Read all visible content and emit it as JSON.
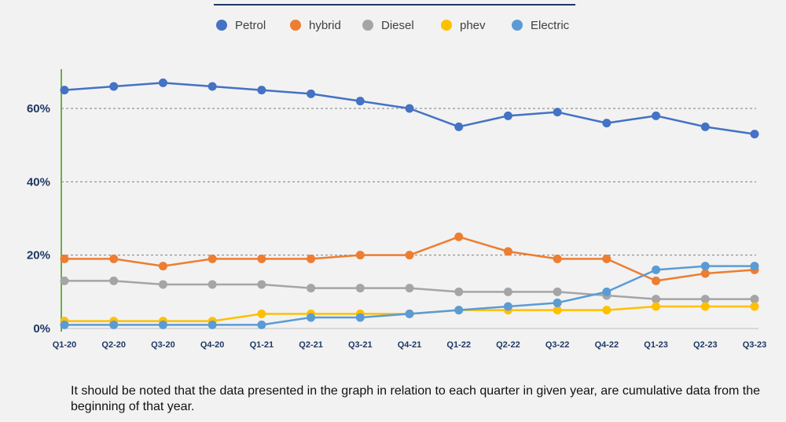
{
  "chart_data": {
    "type": "line",
    "categories": [
      "Q1-20",
      "Q2-20",
      "Q3-20",
      "Q4-20",
      "Q1-21",
      "Q2-21",
      "Q3-21",
      "Q4-21",
      "Q1-22",
      "Q2-22",
      "Q3-22",
      "Q4-22",
      "Q1-23",
      "Q2-23",
      "Q3-23"
    ],
    "ylim": [
      0,
      70
    ],
    "yticks": [
      0,
      20,
      40,
      60
    ],
    "ytick_labels": [
      "0%",
      "20%",
      "40%",
      "60%"
    ],
    "grid": "horizontal dashed at 20%, 40%, 60%",
    "legend_position": "top-center",
    "series": [
      {
        "name": "Petrol",
        "color": "#4472c4",
        "values": [
          65,
          66,
          67,
          66,
          65,
          64,
          62,
          60,
          55,
          58,
          59,
          56,
          58,
          55,
          53
        ]
      },
      {
        "name": "hybrid",
        "color": "#ed7d31",
        "values": [
          19,
          19,
          17,
          19,
          19,
          19,
          20,
          20,
          25,
          21,
          19,
          19,
          13,
          15,
          16
        ]
      },
      {
        "name": "Diesel",
        "color": "#a5a5a5",
        "values": [
          13,
          13,
          12,
          12,
          12,
          11,
          11,
          11,
          10,
          10,
          10,
          9,
          8,
          8,
          8
        ]
      },
      {
        "name": "phev",
        "color": "#ffc000",
        "values": [
          2,
          2,
          2,
          2,
          4,
          4,
          4,
          4,
          5,
          5,
          5,
          5,
          6,
          6,
          6
        ]
      },
      {
        "name": "Electric",
        "color": "#5b9bd5",
        "values": [
          1,
          1,
          1,
          1,
          1,
          3,
          3,
          4,
          5,
          6,
          7,
          10,
          16,
          17,
          17
        ]
      }
    ]
  },
  "footnote": "It should be noted that the data presented in the graph in relation to each quarter in given year, are cumulative data from the beginning of that year."
}
